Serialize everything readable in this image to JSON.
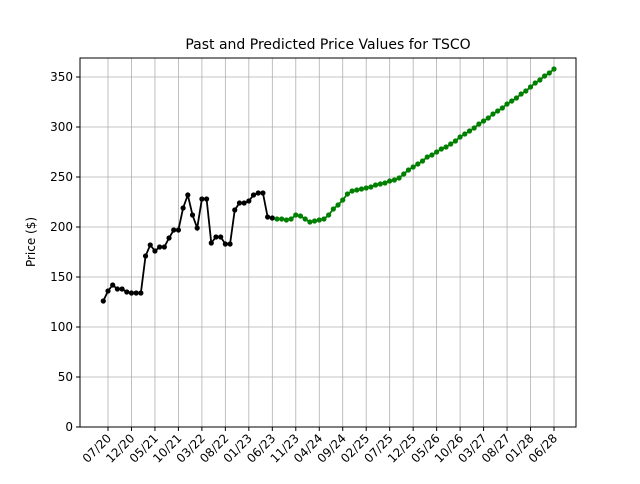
{
  "chart_data": {
    "type": "line",
    "title": "Past and Predicted Price Values for TSCO",
    "y_label": "Price ($)",
    "categories": [
      null,
      "07/20",
      null,
      null,
      null,
      null,
      "12/20",
      null,
      null,
      null,
      null,
      "05/21",
      null,
      null,
      null,
      null,
      "10/21",
      null,
      null,
      null,
      null,
      "03/22",
      null,
      null,
      null,
      null,
      "08/22",
      null,
      null,
      null,
      null,
      "01/23",
      null,
      null,
      null,
      null,
      "06/23",
      null,
      null,
      null,
      null,
      "11/23",
      null,
      null,
      null,
      null,
      "04/24",
      null,
      null,
      null,
      null,
      "09/24",
      null,
      null,
      null,
      null,
      "02/25",
      null,
      null,
      null,
      null,
      "07/25",
      null,
      null,
      null,
      null,
      "12/25",
      null,
      null,
      null,
      null,
      "05/26",
      null,
      null,
      null,
      null,
      "10/26",
      null,
      null,
      null,
      null,
      "03/27",
      null,
      null,
      null,
      null,
      "08/27",
      null,
      null,
      null,
      null,
      "01/28",
      null,
      null,
      null,
      null,
      "06/28"
    ],
    "series": [
      {
        "color": "#000000",
        "values": [
          126,
          136,
          142,
          138,
          138,
          135,
          134,
          134,
          134,
          171,
          182,
          176,
          180,
          180,
          189,
          197,
          197,
          219,
          232,
          212,
          199,
          228,
          228,
          184,
          190,
          190,
          183,
          183,
          217,
          224,
          224,
          226,
          232,
          234,
          234,
          210,
          209,
          null,
          null,
          null,
          null,
          null,
          null,
          null,
          null,
          null,
          null,
          null,
          null,
          null,
          null,
          null,
          null,
          null,
          null,
          null,
          null,
          null,
          null,
          null,
          null,
          null,
          null,
          null,
          null,
          null,
          null,
          null,
          null,
          null,
          null,
          null,
          null,
          null,
          null,
          null,
          null,
          null,
          null,
          null,
          null,
          null,
          null,
          null,
          null,
          null,
          null,
          null,
          null,
          null,
          null,
          null,
          null,
          null,
          null,
          null,
          null
        ]
      },
      {
        "color": "#008000",
        "values": [
          null,
          null,
          null,
          null,
          null,
          null,
          null,
          null,
          null,
          null,
          null,
          null,
          null,
          null,
          null,
          null,
          null,
          null,
          null,
          null,
          null,
          null,
          null,
          null,
          null,
          null,
          null,
          null,
          null,
          null,
          null,
          null,
          null,
          null,
          null,
          null,
          null,
          208,
          208,
          207,
          208,
          212,
          211,
          208,
          205,
          206,
          207,
          208,
          212,
          218,
          222,
          227,
          233,
          236,
          237,
          238,
          239,
          240,
          242,
          243,
          244,
          246,
          247,
          249,
          253,
          257,
          260,
          263,
          266,
          270,
          272,
          275,
          278,
          280,
          283,
          286,
          290,
          293,
          296,
          299,
          303,
          306,
          309,
          313,
          316,
          319,
          323,
          326,
          329,
          333,
          336,
          340,
          344,
          347,
          351,
          354,
          358
        ]
      }
    ],
    "ylim": [
      0,
      369
    ],
    "yticks": [
      0,
      50,
      100,
      150,
      200,
      250,
      300,
      350
    ],
    "grid": true
  }
}
